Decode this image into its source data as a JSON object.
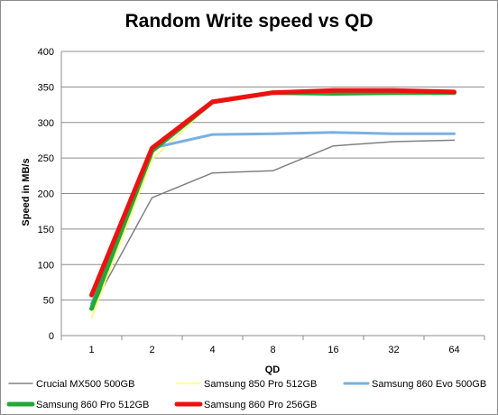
{
  "chart_data": {
    "type": "line",
    "title": "Random Write speed vs QD",
    "xlabel": "QD",
    "ylabel": "Speed in MB/s",
    "categories": [
      "1",
      "2",
      "4",
      "8",
      "16",
      "32",
      "64"
    ],
    "ylim": [
      0,
      400
    ],
    "yticks": [
      0,
      50,
      100,
      150,
      200,
      250,
      300,
      350,
      400
    ],
    "grid": true,
    "legend_position": "bottom",
    "series": [
      {
        "name": "Crucial MX500 500GB",
        "color": "#808080",
        "values": [
          38,
          194,
          229,
          232,
          267,
          273,
          275
        ]
      },
      {
        "name": "Samsung 850 Pro 512GB",
        "color": "#ffff66",
        "values": [
          25,
          248,
          328,
          345,
          344,
          343,
          342
        ]
      },
      {
        "name": "Samsung 860 Evo 500GB",
        "color": "#7ab0e0",
        "values": [
          45,
          264,
          283,
          284,
          286,
          284,
          284
        ]
      },
      {
        "name": "Samsung 860 Pro 512GB",
        "color": "#22a83a",
        "values": [
          38,
          260,
          329,
          342,
          341,
          342,
          342
        ]
      },
      {
        "name": "Samsung 860 Pro 256GB",
        "color": "#ee1111",
        "values": [
          57,
          264,
          329,
          342,
          345,
          345,
          343
        ]
      }
    ]
  }
}
